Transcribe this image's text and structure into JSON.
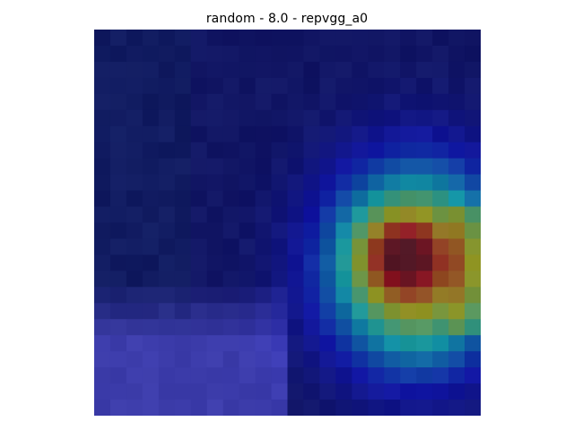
{
  "figure": {
    "title": "random - 8.0 - repvgg_a0"
  },
  "image": {
    "content": "pixelated low-resolution photo overlaid with a jet-colormap saliency heatmap",
    "grid_cells": 24
  }
}
